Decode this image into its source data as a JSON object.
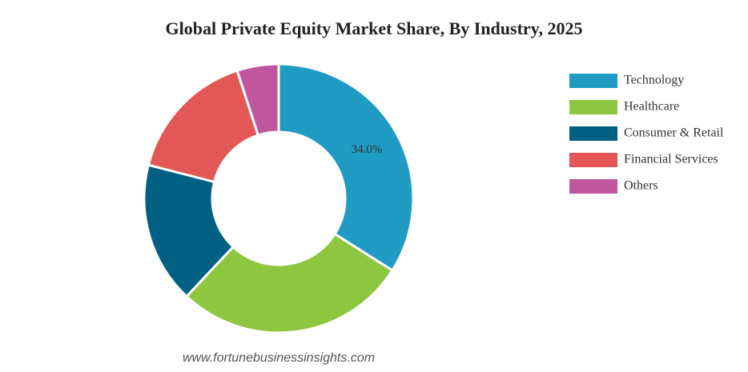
{
  "chart_data": {
    "type": "donut",
    "title": "Global Private Equity Market Share, By Industry, 2025",
    "categories": [
      "Technology",
      "Healthcare",
      "Consumer & Retail",
      "Financial Services",
      "Others"
    ],
    "values": [
      34,
      28,
      17,
      16,
      5
    ],
    "value_labels": [
      "34.0%",
      null,
      null,
      null,
      null
    ],
    "colors": [
      "#1f9bc4",
      "#8dc63f",
      "#006083",
      "#e35757",
      "#c0569e"
    ],
    "legend": "right",
    "source": "www.fortunebusinessinsights.com"
  }
}
